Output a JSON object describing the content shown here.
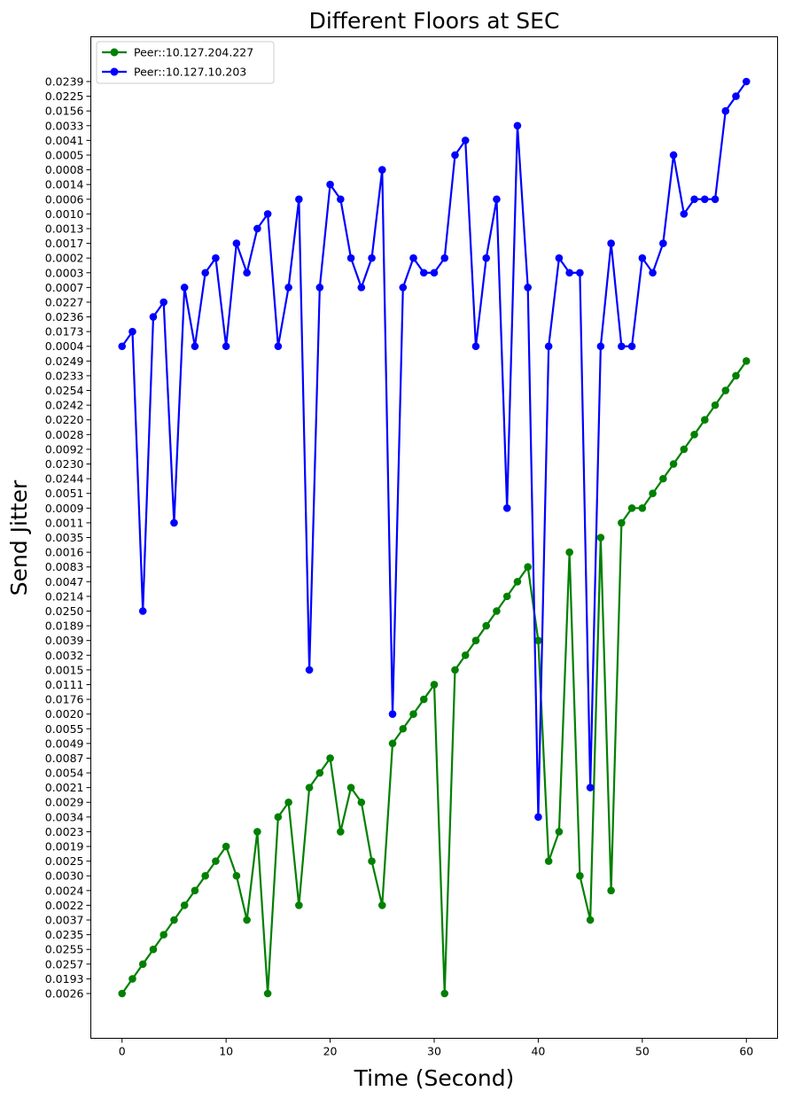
{
  "chart_data": {
    "type": "line",
    "title": "Different Floors at SEC",
    "xlabel": "Time (Second)",
    "ylabel": "Send Jitter",
    "xlim": [
      -3,
      63
    ],
    "x_ticks": [
      0,
      10,
      20,
      30,
      40,
      50,
      60
    ],
    "y_axis_kind": "categorical",
    "y_categories": [
      "0.0026",
      "0.0193",
      "0.0257",
      "0.0255",
      "0.0235",
      "0.0037",
      "0.0022",
      "0.0024",
      "0.0030",
      "0.0025",
      "0.0019",
      "0.0023",
      "0.0034",
      "0.0029",
      "0.0021",
      "0.0054",
      "0.0087",
      "0.0049",
      "0.0055",
      "0.0020",
      "0.0176",
      "0.0111",
      "0.0015",
      "0.0032",
      "0.0039",
      "0.0189",
      "0.0250",
      "0.0214",
      "0.0047",
      "0.0083",
      "0.0016",
      "0.0035",
      "0.0011",
      "0.0009",
      "0.0051",
      "0.0244",
      "0.0230",
      "0.0092",
      "0.0028",
      "0.0220",
      "0.0242",
      "0.0254",
      "0.0233",
      "0.0249",
      "0.0004",
      "0.0173",
      "0.0236",
      "0.0227",
      "0.0007",
      "0.0003",
      "0.0002",
      "0.0017",
      "0.0013",
      "0.0010",
      "0.0006",
      "0.0014",
      "0.0008",
      "0.0005",
      "0.0041",
      "0.0033",
      "0.0156",
      "0.0225",
      "0.0239"
    ],
    "legend_position": "top-left",
    "grid": false,
    "series": [
      {
        "name": "Peer::10.127.204.227",
        "color": "#008000",
        "x": [
          0,
          1,
          2,
          3,
          4,
          5,
          6,
          7,
          8,
          9,
          10,
          11,
          12,
          13,
          14,
          15,
          16,
          17,
          18,
          19,
          20,
          21,
          22,
          23,
          24,
          25,
          26,
          27,
          28,
          29,
          30,
          31,
          32,
          33,
          34,
          35,
          36,
          37,
          38,
          39,
          40,
          41,
          42,
          43,
          44,
          45,
          46,
          47,
          48,
          49,
          50,
          51,
          52,
          53,
          54,
          55,
          56,
          57,
          58,
          59,
          60
        ],
        "y": [
          "0.0026",
          "0.0193",
          "0.0257",
          "0.0255",
          "0.0235",
          "0.0037",
          "0.0022",
          "0.0024",
          "0.0030",
          "0.0025",
          "0.0019",
          "0.0030",
          "0.0037",
          "0.0023",
          "0.0026",
          "0.0034",
          "0.0029",
          "0.0022",
          "0.0021",
          "0.0054",
          "0.0087",
          "0.0023",
          "0.0021",
          "0.0029",
          "0.0025",
          "0.0022",
          "0.0049",
          "0.0055",
          "0.0020",
          "0.0176",
          "0.0111",
          "0.0026",
          "0.0015",
          "0.0032",
          "0.0039",
          "0.0189",
          "0.0250",
          "0.0214",
          "0.0047",
          "0.0083",
          "0.0039",
          "0.0025",
          "0.0023",
          "0.0016",
          "0.0030",
          "0.0037",
          "0.0035",
          "0.0024",
          "0.0011",
          "0.0009",
          "0.0009",
          "0.0051",
          "0.0244",
          "0.0230",
          "0.0092",
          "0.0028",
          "0.0220",
          "0.0242",
          "0.0254",
          "0.0233",
          "0.0249"
        ]
      },
      {
        "name": "Peer::10.127.10.203",
        "color": "#0000ff",
        "x": [
          0,
          1,
          2,
          3,
          4,
          5,
          6,
          7,
          8,
          9,
          10,
          11,
          12,
          13,
          14,
          15,
          16,
          17,
          18,
          19,
          20,
          21,
          22,
          23,
          24,
          25,
          26,
          27,
          28,
          29,
          30,
          31,
          32,
          33,
          34,
          35,
          36,
          37,
          38,
          39,
          40,
          41,
          42,
          43,
          44,
          45,
          46,
          47,
          48,
          49,
          50,
          51,
          52,
          53,
          54,
          55,
          56,
          57,
          58,
          59,
          60
        ],
        "y": [
          "0.0004",
          "0.0173",
          "0.0250",
          "0.0236",
          "0.0227",
          "0.0011",
          "0.0007",
          "0.0004",
          "0.0003",
          "0.0002",
          "0.0004",
          "0.0017",
          "0.0003",
          "0.0013",
          "0.0010",
          "0.0004",
          "0.0007",
          "0.0006",
          "0.0015",
          "0.0007",
          "0.0014",
          "0.0006",
          "0.0002",
          "0.0007",
          "0.0002",
          "0.0008",
          "0.0020",
          "0.0007",
          "0.0002",
          "0.0003",
          "0.0003",
          "0.0002",
          "0.0005",
          "0.0041",
          "0.0004",
          "0.0002",
          "0.0006",
          "0.0009",
          "0.0033",
          "0.0007",
          "0.0034",
          "0.0004",
          "0.0002",
          "0.0003",
          "0.0003",
          "0.0021",
          "0.0004",
          "0.0017",
          "0.0004",
          "0.0004",
          "0.0002",
          "0.0003",
          "0.0017",
          "0.0005",
          "0.0010",
          "0.0006",
          "0.0006",
          "0.0006",
          "0.0156",
          "0.0225",
          "0.0239"
        ]
      }
    ]
  }
}
